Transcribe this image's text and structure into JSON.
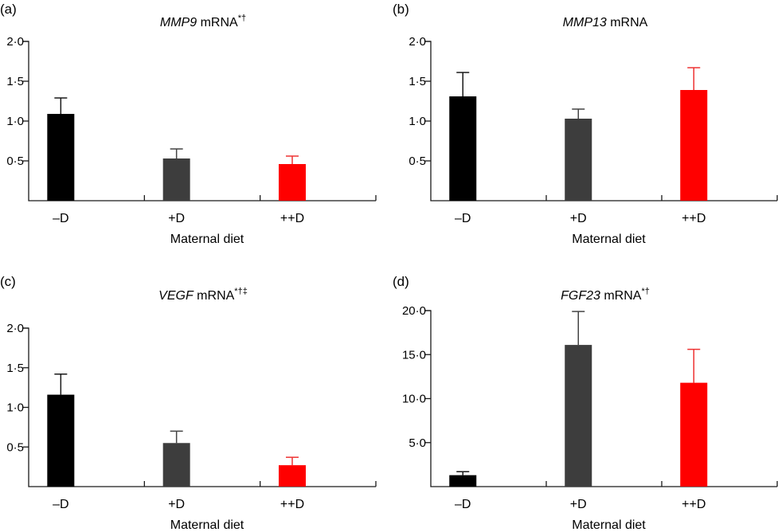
{
  "figure": {
    "colors": {
      "-D": "#000000",
      "+D": "#3d3d3d",
      "++D": "#ff0000",
      "axis": "#1a1a1a",
      "error_bar_-D": "#1a1a1a",
      "error_bar_+D": "#444444",
      "error_bar_++D": "#ee3333"
    }
  },
  "chart_data": [
    {
      "id": "a",
      "panel_label": "(a)",
      "type": "bar",
      "title_gene": "MMP9",
      "title_rest": " mRNA",
      "title_superscript": "*†",
      "xlabel": "Maternal diet",
      "ylabel": "",
      "categories": [
        "–D",
        "+D",
        "++D"
      ],
      "values": [
        1.09,
        0.53,
        0.46
      ],
      "error_upper": [
        1.29,
        0.65,
        0.56
      ],
      "ylim": [
        0,
        2.0
      ],
      "yticks": [
        0.5,
        1.0,
        1.5,
        2.0
      ],
      "ytick_labels": [
        "0·5",
        "1·0",
        "1·5",
        "2·0"
      ],
      "grid": false,
      "legend": "none"
    },
    {
      "id": "b",
      "panel_label": "(b)",
      "type": "bar",
      "title_gene": "MMP13",
      "title_rest": " mRNA",
      "title_superscript": "",
      "xlabel": "Maternal diet",
      "ylabel": "",
      "categories": [
        "–D",
        "+D",
        "++D"
      ],
      "values": [
        1.31,
        1.03,
        1.39
      ],
      "error_upper": [
        1.61,
        1.15,
        1.67
      ],
      "ylim": [
        0,
        2.0
      ],
      "yticks": [
        0.5,
        1.0,
        1.5,
        2.0
      ],
      "ytick_labels": [
        "0·5",
        "1·0",
        "1·5",
        "2·0"
      ],
      "grid": false,
      "legend": "none"
    },
    {
      "id": "c",
      "panel_label": "(c)",
      "type": "bar",
      "title_gene": "VEGF",
      "title_rest": " mRNA",
      "title_superscript": "*†‡",
      "xlabel": "Maternal diet",
      "ylabel": "",
      "categories": [
        "–D",
        "+D",
        "++D"
      ],
      "values": [
        1.16,
        0.55,
        0.27
      ],
      "error_upper": [
        1.42,
        0.7,
        0.37
      ],
      "ylim": [
        0,
        2.0
      ],
      "yticks": [
        0.5,
        1.0,
        1.5,
        2.0
      ],
      "ytick_labels": [
        "0·5",
        "1·0",
        "1·5",
        "2·0"
      ],
      "grid": false,
      "legend": "none"
    },
    {
      "id": "d",
      "panel_label": "(d)",
      "type": "bar",
      "title_gene": "FGF23",
      "title_rest": " mRNA",
      "title_superscript": "*†",
      "xlabel": "Maternal diet",
      "ylabel": "",
      "categories": [
        "–D",
        "+D",
        "++D"
      ],
      "values": [
        1.3,
        16.1,
        11.8
      ],
      "error_upper": [
        1.7,
        19.9,
        15.6
      ],
      "ylim": [
        0,
        20.0
      ],
      "yticks": [
        5.0,
        10.0,
        15.0,
        20.0
      ],
      "ytick_labels": [
        "5·0",
        "10·0",
        "15·0",
        "20·0"
      ],
      "grid": false,
      "legend": "none"
    }
  ]
}
